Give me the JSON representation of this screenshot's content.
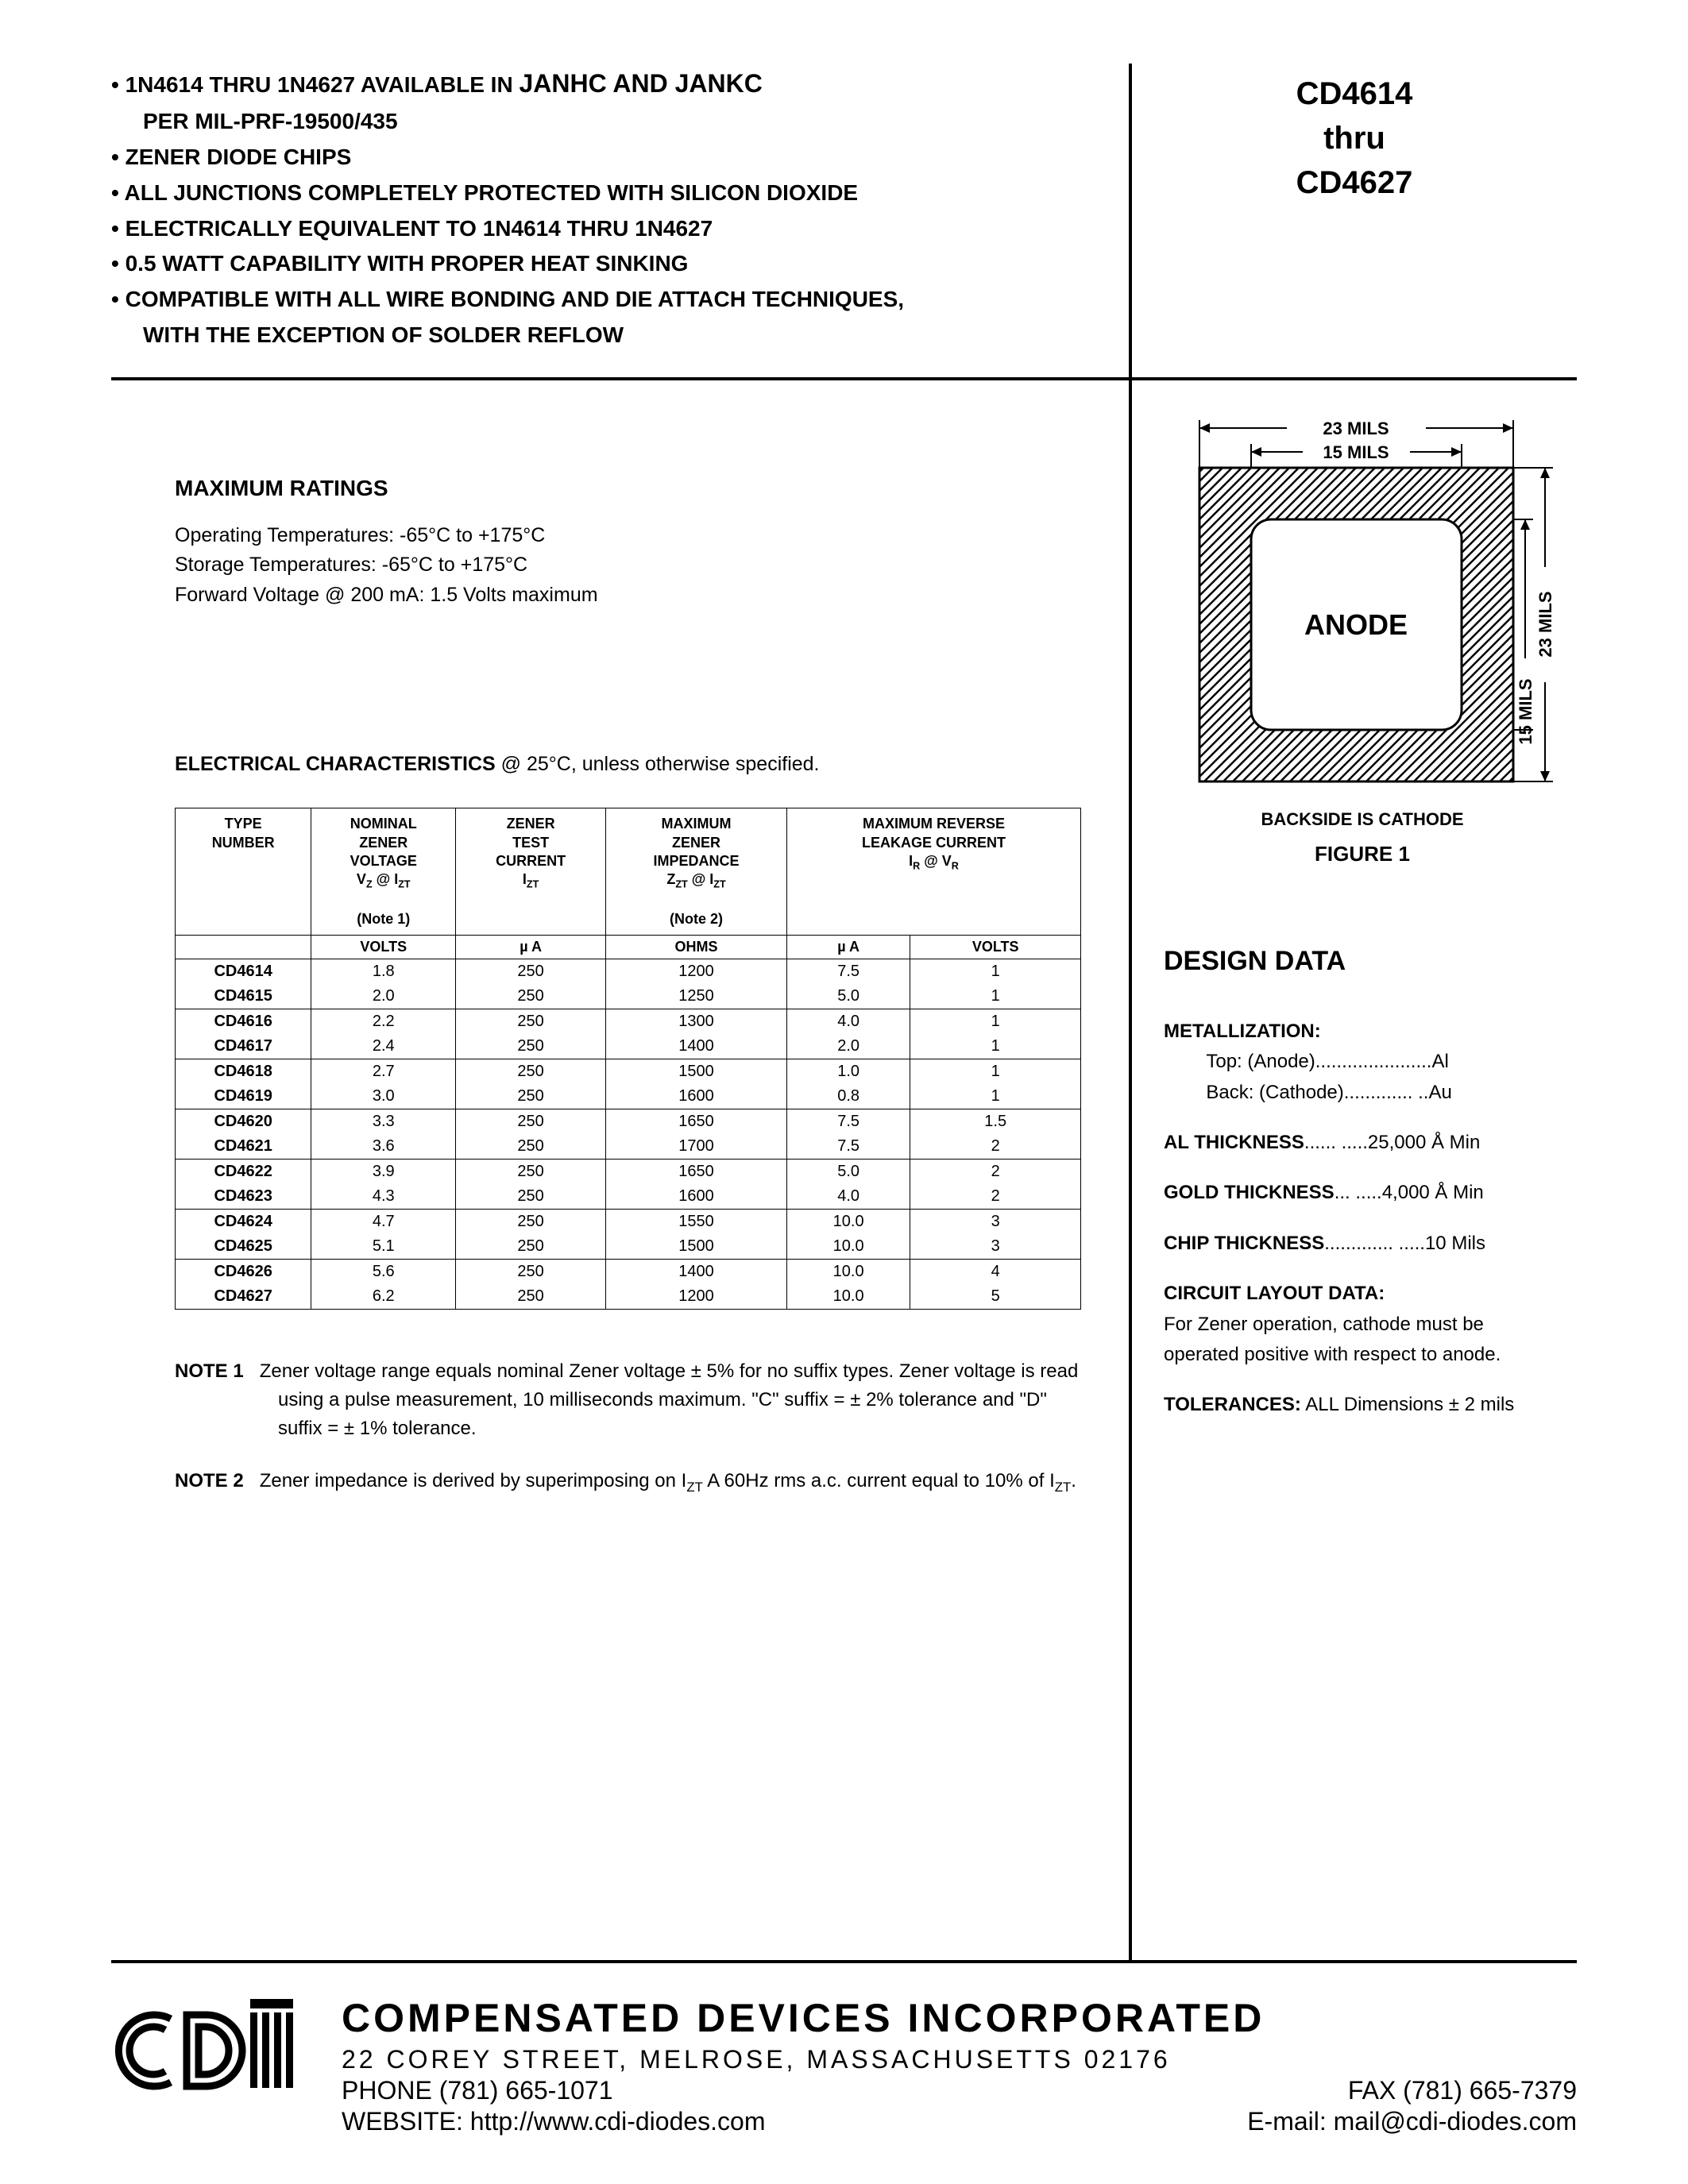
{
  "header": {
    "bullets": [
      {
        "main": "1N4614 THRU 1N4627 AVAILABLE IN <span style='font-size:32px'>JANHC AND JANKC</span>",
        "sub": "PER MIL-PRF-19500/435"
      },
      {
        "main": "ZENER DIODE CHIPS"
      },
      {
        "main": "ALL JUNCTIONS COMPLETELY PROTECTED WITH SILICON DIOXIDE"
      },
      {
        "main": "ELECTRICALLY EQUIVALENT TO 1N4614 THRU 1N4627"
      },
      {
        "main": "0.5 WATT CAPABILITY WITH PROPER HEAT SINKING"
      },
      {
        "main": "COMPATIBLE WITH ALL WIRE BONDING AND DIE ATTACH TECHNIQUES,",
        "sub": "WITH THE EXCEPTION OF SOLDER REFLOW"
      }
    ],
    "part_from": "CD4614",
    "part_thru": "thru",
    "part_to": "CD4627"
  },
  "ratings": {
    "heading": "MAXIMUM RATINGS",
    "lines": [
      "Operating Temperatures: -65°C to +175°C",
      "Storage Temperatures: -65°C to +175°C",
      "Forward Voltage @ 200 mA: 1.5 Volts maximum"
    ]
  },
  "elec": {
    "heading_bold": "ELECTRICAL CHARACTERISTICS",
    "heading_rest": " @ 25°C, unless otherwise specified.",
    "columns": [
      {
        "title": "TYPE<br>NUMBER",
        "sub": "",
        "unit": ""
      },
      {
        "title": "NOMINAL<br>ZENER<br>VOLTAGE",
        "sub": "V<sub>Z</sub> @ I<sub>ZT</sub><br><br>(Note 1)",
        "unit": "VOLTS"
      },
      {
        "title": "ZENER<br>TEST<br>CURRENT",
        "sub": "I<sub>ZT</sub>",
        "unit": "µ A"
      },
      {
        "title": "MAXIMUM<br>ZENER<br>IMPEDANCE",
        "sub": "Z<sub>ZT</sub> @ I<sub>ZT</sub><br><br>(Note 2)",
        "unit": "OHMS"
      },
      {
        "title": "MAXIMUM REVERSE<br>LEAKAGE CURRENT",
        "sub": "I<sub>R</sub> @ V<sub>R</sub>",
        "unit1": "µ A",
        "unit2": "VOLTS",
        "span": 2
      }
    ],
    "rows": [
      {
        "g": true,
        "c": [
          "CD4614",
          "1.8",
          "250",
          "1200",
          "7.5",
          "1"
        ]
      },
      {
        "c": [
          "CD4615",
          "2.0",
          "250",
          "1250",
          "5.0",
          "1"
        ]
      },
      {
        "g": true,
        "c": [
          "CD4616",
          "2.2",
          "250",
          "1300",
          "4.0",
          "1"
        ]
      },
      {
        "c": [
          "CD4617",
          "2.4",
          "250",
          "1400",
          "2.0",
          "1"
        ]
      },
      {
        "g": true,
        "c": [
          "CD4618",
          "2.7",
          "250",
          "1500",
          "1.0",
          "1"
        ]
      },
      {
        "c": [
          "CD4619",
          "3.0",
          "250",
          "1600",
          "0.8",
          "1"
        ]
      },
      {
        "g": true,
        "c": [
          "CD4620",
          "3.3",
          "250",
          "1650",
          "7.5",
          "1.5"
        ]
      },
      {
        "c": [
          "CD4621",
          "3.6",
          "250",
          "1700",
          "7.5",
          "2"
        ]
      },
      {
        "g": true,
        "c": [
          "CD4622",
          "3.9",
          "250",
          "1650",
          "5.0",
          "2"
        ]
      },
      {
        "c": [
          "CD4623",
          "4.3",
          "250",
          "1600",
          "4.0",
          "2"
        ]
      },
      {
        "g": true,
        "c": [
          "CD4624",
          "4.7",
          "250",
          "1550",
          "10.0",
          "3"
        ]
      },
      {
        "c": [
          "CD4625",
          "5.1",
          "250",
          "1500",
          "10.0",
          "3"
        ]
      },
      {
        "g": true,
        "c": [
          "CD4626",
          "5.6",
          "250",
          "1400",
          "10.0",
          "4"
        ]
      },
      {
        "c": [
          "CD4627",
          "6.2",
          "250",
          "1200",
          "10.0",
          "5"
        ]
      }
    ],
    "note1_label": "NOTE 1",
    "note1_text": "Zener voltage range equals nominal Zener voltage ± 5% for no suffix types. Zener voltage is read using a pulse measurement, 10 milliseconds maximum. \"C\" suffix = ± 2% tolerance and \"D\" suffix = ± 1% tolerance.",
    "note2_label": "NOTE 2",
    "note2_text": "Zener impedance is derived by superimposing on I<sub>ZT</sub> A 60Hz rms a.c. current equal to 10% of I<sub>ZT</sub>."
  },
  "figure": {
    "outer_dim": "23 MILS",
    "inner_dim": "15 MILS",
    "label": "ANODE",
    "caption": "BACKSIDE IS CATHODE",
    "title": "FIGURE 1",
    "hatch_color": "#000000",
    "bg_color": "#ffffff"
  },
  "design": {
    "heading": "DESIGN DATA",
    "metallization_label": "METALLIZATION:",
    "metallization_top": "Top: (Anode)......................Al",
    "metallization_back": "Back: (Cathode)............. ..Au",
    "al_thickness": "AL THICKNESS...... .....25,000 Å Min",
    "gold_thickness": "GOLD THICKNESS... .....4,000 Å Min",
    "chip_thickness": "CHIP THICKNESS............. .....10 Mils",
    "circuit_label": "CIRCUIT LAYOUT DATA:",
    "circuit_text": "For Zener operation, cathode must be operated positive with respect to anode.",
    "tolerances_label": "TOLERANCES:",
    "tolerances_text": " ALL Dimensions ± 2 mils"
  },
  "footer": {
    "company": "COMPENSATED DEVICES INCORPORATED",
    "address": "22 COREY STREET, MELROSE, MASSACHUSETTS 02176",
    "phone": "PHONE (781) 665-1071",
    "fax": "FAX (781) 665-7379",
    "website": "WEBSITE:  http://www.cdi-diodes.com",
    "email": "E-mail: mail@cdi-diodes.com"
  }
}
